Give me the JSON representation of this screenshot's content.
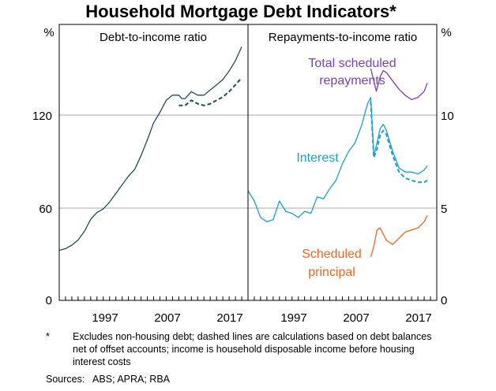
{
  "chart_data": {
    "type": "line",
    "title": "Household Mortgage Debt Indicators*",
    "footnote_marker": "*",
    "footnote": "Excludes non-housing debt; dashed lines are calculations based on debt balances net of offset accounts; income is household disposable income before housing interest costs",
    "sources": "Sources:   ABS; APRA; RBA",
    "panels": [
      {
        "title": "Debt-to-income ratio",
        "unit_label": "%",
        "ylim": [
          0,
          160
        ],
        "yticks": [
          0,
          60,
          120
        ],
        "xlim": [
          1989,
          2019
        ],
        "xticks": [
          1997,
          2007,
          2017
        ],
        "series": [
          {
            "style": "solid",
            "color": "#1f4e5a",
            "x": [
              1989,
              1990,
              1991,
              1992,
              1993,
              1994,
              1995,
              1996,
              1997,
              1998,
              1999,
              2000,
              2001,
              2002,
              2003,
              2004,
              2005,
              2006,
              2007,
              2008,
              2008.5,
              2009,
              2010,
              2011,
              2012,
              2013,
              2014,
              2015,
              2016,
              2017,
              2018
            ],
            "y": [
              29,
              30,
              32,
              35,
              40,
              47,
              51,
              53,
              57,
              62,
              67,
              72,
              76,
              84,
              93,
              103,
              109,
              116,
              119,
              119,
              117,
              117,
              121,
              119,
              119,
              122,
              125,
              128,
              133,
              139,
              147
            ]
          },
          {
            "style": "dashed",
            "color": "#1f4e5a",
            "x": [
              2008,
              2009,
              2010,
              2011,
              2012,
              2013,
              2014,
              2015,
              2016,
              2017,
              2018
            ],
            "y": [
              113,
              113,
              116,
              114,
              113,
              114,
              116,
              118,
              121,
              125,
              129
            ]
          }
        ]
      },
      {
        "title": "Repayments-to-income ratio",
        "unit_label": "%",
        "ylim": [
          0,
          13.33
        ],
        "yticks": [
          0,
          5,
          10
        ],
        "xlim": [
          1989,
          2019
        ],
        "xticks": [
          1997,
          2007,
          2017
        ],
        "series": [
          {
            "name": "Total scheduled repayments",
            "style": "solid",
            "color": "#7b3fbe",
            "x": [
              2008.5,
              2009,
              2009.4,
              2010,
              2010.5,
              2011,
              2012,
              2013,
              2014,
              2015,
              2016,
              2017,
              2017.5
            ],
            "y": [
              11.2,
              10.6,
              10.1,
              10.8,
              11.1,
              11.0,
              10.6,
              10.2,
              9.9,
              9.7,
              9.8,
              10.1,
              10.5
            ]
          },
          {
            "name": "Interest",
            "style": "solid",
            "color": "#1aa0d0",
            "x": [
              1989,
              1990,
              1991,
              1992,
              1993,
              1994,
              1995,
              1996,
              1997,
              1998,
              1999,
              2000,
              2001,
              2002,
              2003,
              2004,
              2005,
              2006,
              2007,
              2008,
              2008.5,
              2009,
              2009.5,
              2010,
              2010.5,
              2011,
              2012,
              2013,
              2014,
              2015,
              2016,
              2017,
              2017.5
            ],
            "y": [
              5.3,
              4.8,
              4.0,
              3.8,
              3.9,
              4.8,
              4.3,
              4.2,
              4.0,
              4.3,
              4.2,
              5.0,
              4.9,
              5.4,
              5.8,
              6.6,
              7.2,
              7.6,
              8.4,
              9.5,
              9.8,
              7.0,
              7.6,
              8.3,
              8.5,
              8.2,
              7.2,
              6.4,
              6.2,
              6.2,
              6.1,
              6.3,
              6.5
            ]
          },
          {
            "style": "dashed",
            "color": "#1aa0d0",
            "x": [
              2008.5,
              2009,
              2009.5,
              2010,
              2010.5,
              2011,
              2012,
              2013,
              2014,
              2015,
              2016,
              2017,
              2017.5
            ],
            "y": [
              9.6,
              6.9,
              7.3,
              8.0,
              8.2,
              8.0,
              7.0,
              6.2,
              5.9,
              5.8,
              5.7,
              5.7,
              5.8
            ]
          },
          {
            "name": "Scheduled principal",
            "style": "solid",
            "color": "#f26522",
            "x": [
              2008.5,
              2009,
              2009.5,
              2010,
              2010.5,
              2011,
              2012,
              2013,
              2014,
              2015,
              2016,
              2017,
              2017.5
            ],
            "y": [
              2.1,
              2.6,
              3.4,
              3.5,
              3.2,
              2.9,
              2.7,
              3.0,
              3.3,
              3.4,
              3.5,
              3.8,
              4.1
            ]
          }
        ]
      }
    ]
  }
}
